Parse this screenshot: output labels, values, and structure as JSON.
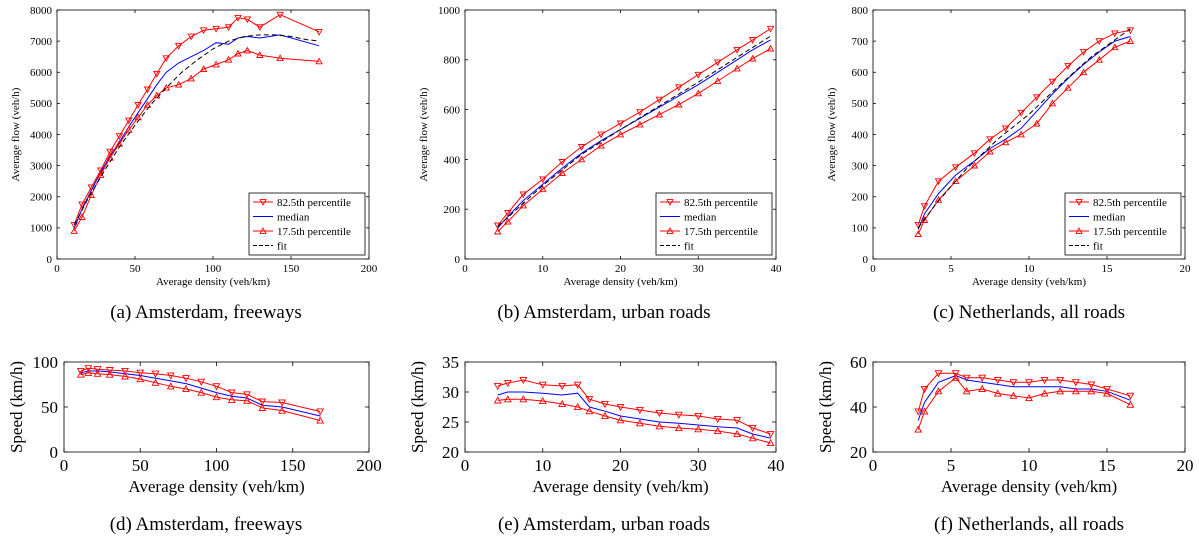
{
  "chart_data": [
    {
      "type": "line",
      "caption": "(a) Amsterdam, freeways",
      "xlabel": "Average density (veh/km)",
      "ylabel": "Average flow (veh/h)",
      "xlim": [
        0,
        200
      ],
      "ylim": [
        0,
        8000
      ],
      "xticks": [
        0,
        50,
        100,
        150,
        200
      ],
      "yticks": [
        0,
        1000,
        2000,
        3000,
        4000,
        5000,
        6000,
        7000,
        8000
      ],
      "legend_position": "bottom-right",
      "series": [
        {
          "name": "82.5th percentile",
          "x": [
            11,
            16,
            22,
            28,
            34,
            40,
            46,
            52,
            58,
            64,
            70,
            78,
            86,
            94,
            102,
            110,
            116,
            122,
            130,
            143,
            168
          ],
          "y": [
            1100,
            1750,
            2300,
            2850,
            3450,
            3950,
            4450,
            4950,
            5450,
            5950,
            6450,
            6850,
            7150,
            7350,
            7400,
            7450,
            7750,
            7700,
            7450,
            7850,
            7300
          ]
        },
        {
          "name": "median",
          "x": [
            11,
            16,
            22,
            28,
            34,
            40,
            46,
            52,
            58,
            64,
            70,
            78,
            86,
            94,
            102,
            110,
            116,
            122,
            130,
            143,
            168
          ],
          "y": [
            1000,
            1600,
            2200,
            2800,
            3300,
            3750,
            4250,
            4700,
            5150,
            5600,
            6000,
            6300,
            6500,
            6700,
            6950,
            6900,
            7100,
            7150,
            7100,
            7200,
            6850
          ]
        },
        {
          "name": "17.5th percentile",
          "x": [
            11,
            16,
            22,
            28,
            34,
            40,
            46,
            52,
            58,
            64,
            70,
            78,
            86,
            94,
            102,
            110,
            116,
            122,
            130,
            143,
            168
          ],
          "y": [
            900,
            1350,
            2050,
            2700,
            3250,
            3700,
            4150,
            4550,
            4950,
            5250,
            5500,
            5600,
            5800,
            6100,
            6250,
            6400,
            6600,
            6700,
            6550,
            6450,
            6350
          ]
        },
        {
          "name": "fit",
          "x": [
            11,
            20,
            30,
            40,
            50,
            60,
            70,
            80,
            90,
            100,
            110,
            120,
            130,
            140,
            150,
            160,
            168
          ],
          "y": [
            1100,
            1950,
            2800,
            3600,
            4300,
            4950,
            5500,
            6000,
            6400,
            6750,
            7000,
            7150,
            7200,
            7200,
            7150,
            7050,
            7000
          ],
          "style": "dashed"
        }
      ]
    },
    {
      "type": "line",
      "caption": "(b) Amsterdam, urban roads",
      "xlabel": "Average density (veh/km)",
      "ylabel": "Average flow (veh/h)",
      "xlim": [
        0,
        40
      ],
      "ylim": [
        0,
        1000
      ],
      "xticks": [
        0,
        10,
        20,
        30,
        40
      ],
      "yticks": [
        0,
        200,
        400,
        600,
        800,
        1000
      ],
      "legend_position": "bottom-right",
      "series": [
        {
          "name": "82.5th percentile",
          "x": [
            4.2,
            5.5,
            7.5,
            10,
            12.5,
            15,
            17.5,
            20,
            22.5,
            25,
            27.5,
            30,
            32.5,
            35,
            37,
            39.3
          ],
          "y": [
            135,
            185,
            260,
            320,
            390,
            450,
            500,
            545,
            590,
            640,
            690,
            740,
            790,
            840,
            880,
            925
          ]
        },
        {
          "name": "median",
          "x": [
            4.2,
            5.5,
            7.5,
            10,
            12.5,
            15,
            17.5,
            20,
            22.5,
            25,
            27.5,
            30,
            32.5,
            35,
            37,
            39.3
          ],
          "y": [
            125,
            170,
            235,
            300,
            365,
            425,
            475,
            520,
            565,
            610,
            655,
            700,
            750,
            800,
            840,
            880
          ]
        },
        {
          "name": "17.5th percentile",
          "x": [
            4.2,
            5.5,
            7.5,
            10,
            12.5,
            15,
            17.5,
            20,
            22.5,
            25,
            27.5,
            30,
            32.5,
            35,
            37,
            39.3
          ],
          "y": [
            110,
            150,
            215,
            280,
            345,
            400,
            455,
            500,
            540,
            580,
            620,
            665,
            715,
            765,
            805,
            845
          ]
        },
        {
          "name": "fit",
          "x": [
            4.2,
            10,
            15,
            20,
            25,
            30,
            35,
            39.3
          ],
          "y": [
            130,
            295,
            420,
            520,
            615,
            710,
            810,
            895
          ],
          "style": "dashed"
        }
      ]
    },
    {
      "type": "line",
      "caption": "(c) Netherlands, all roads",
      "xlabel": "Average density (veh/km)",
      "ylabel": "Average flow (veh/h)",
      "xlim": [
        0,
        20
      ],
      "ylim": [
        0,
        800
      ],
      "xticks": [
        0,
        5,
        10,
        15,
        20
      ],
      "yticks": [
        0,
        100,
        200,
        300,
        400,
        500,
        600,
        700,
        800
      ],
      "legend_position": "bottom-right",
      "series": [
        {
          "name": "82.5th percentile",
          "x": [
            2.9,
            3.3,
            4.2,
            5.3,
            6.5,
            7.5,
            8.5,
            9.5,
            10.5,
            11.5,
            12.5,
            13.5,
            14.5,
            15.5,
            16.5
          ],
          "y": [
            110,
            170,
            250,
            295,
            340,
            385,
            420,
            470,
            520,
            570,
            620,
            665,
            700,
            725,
            735
          ]
        },
        {
          "name": "median",
          "x": [
            2.9,
            3.3,
            4.2,
            5.3,
            6.5,
            7.5,
            8.5,
            9.5,
            10.5,
            11.5,
            12.5,
            13.5,
            14.5,
            15.5,
            16.5
          ],
          "y": [
            95,
            145,
            210,
            270,
            315,
            355,
            385,
            420,
            475,
            530,
            580,
            625,
            665,
            700,
            715
          ]
        },
        {
          "name": "17.5th percentile",
          "x": [
            2.9,
            3.3,
            4.2,
            5.3,
            6.5,
            7.5,
            8.5,
            9.5,
            10.5,
            11.5,
            12.5,
            13.5,
            14.5,
            15.5,
            16.5
          ],
          "y": [
            80,
            125,
            190,
            250,
            300,
            345,
            375,
            400,
            435,
            500,
            550,
            600,
            640,
            680,
            700
          ]
        },
        {
          "name": "fit",
          "x": [
            2.9,
            4,
            6,
            8,
            10,
            12,
            14,
            16.5
          ],
          "y": [
            100,
            175,
            290,
            385,
            465,
            560,
            650,
            740
          ],
          "style": "dashed"
        }
      ]
    },
    {
      "type": "line",
      "caption": "(d) Amsterdam, freeways",
      "xlabel": "Average density (veh/km)",
      "ylabel": "Speed (km/h)",
      "xlim": [
        0,
        200
      ],
      "ylim": [
        0,
        100
      ],
      "xticks": [
        0,
        50,
        100,
        150,
        200
      ],
      "yticks": [
        0,
        50,
        100
      ],
      "series": [
        {
          "name": "82.5th percentile",
          "x": [
            11,
            16,
            22,
            30,
            40,
            50,
            60,
            70,
            80,
            90,
            100,
            110,
            120,
            130,
            143,
            168
          ],
          "y": [
            90,
            93,
            92,
            91,
            90,
            88,
            87,
            85,
            82,
            78,
            73,
            66,
            64,
            56,
            55,
            45
          ]
        },
        {
          "name": "median",
          "x": [
            11,
            16,
            22,
            30,
            40,
            50,
            60,
            70,
            80,
            90,
            100,
            110,
            120,
            130,
            143,
            168
          ],
          "y": [
            88,
            90,
            90,
            89,
            87,
            85,
            82,
            79,
            76,
            71,
            66,
            62,
            60,
            52,
            50,
            40
          ]
        },
        {
          "name": "17.5th percentile",
          "x": [
            11,
            16,
            22,
            30,
            40,
            50,
            60,
            70,
            80,
            90,
            100,
            110,
            120,
            130,
            143,
            168
          ],
          "y": [
            86,
            88,
            87,
            86,
            84,
            81,
            77,
            73,
            70,
            66,
            61,
            58,
            57,
            49,
            46,
            35
          ]
        }
      ]
    },
    {
      "type": "line",
      "caption": "(e) Amsterdam, urban roads",
      "xlabel": "Average density (veh/km)",
      "ylabel": "Speed (km/h)",
      "xlim": [
        0,
        40
      ],
      "ylim": [
        20,
        35
      ],
      "xticks": [
        0,
        10,
        20,
        30,
        40
      ],
      "yticks": [
        20,
        25,
        30,
        35
      ],
      "series": [
        {
          "name": "82.5th percentile",
          "x": [
            4.2,
            5.5,
            7.5,
            10,
            12.5,
            14.5,
            16,
            18,
            20,
            22.5,
            25,
            27.5,
            30,
            32.5,
            35,
            37,
            39.3
          ],
          "y": [
            31.0,
            31.5,
            32.0,
            31.2,
            31.0,
            31.2,
            28.8,
            28.0,
            27.5,
            27.0,
            26.5,
            26.2,
            26.0,
            25.5,
            25.3,
            24.0,
            23.0
          ]
        },
        {
          "name": "median",
          "x": [
            4.2,
            5.5,
            7.5,
            10,
            12.5,
            14.5,
            16,
            18,
            20,
            22.5,
            25,
            27.5,
            30,
            32.5,
            35,
            37,
            39.3
          ],
          "y": [
            29.5,
            30.0,
            30.0,
            29.8,
            29.5,
            29.8,
            27.5,
            26.8,
            26.0,
            25.5,
            25.0,
            24.8,
            24.5,
            24.2,
            24.0,
            23.0,
            22.3
          ]
        },
        {
          "name": "17.5th percentile",
          "x": [
            4.2,
            5.5,
            7.5,
            10,
            12.5,
            14.5,
            16,
            18,
            20,
            22.5,
            25,
            27.5,
            30,
            32.5,
            35,
            37,
            39.3
          ],
          "y": [
            28.6,
            28.8,
            28.8,
            28.5,
            28.0,
            27.5,
            26.8,
            26.0,
            25.3,
            24.8,
            24.3,
            24.0,
            23.8,
            23.5,
            23.0,
            22.3,
            21.5
          ]
        }
      ]
    },
    {
      "type": "line",
      "caption": "(f) Netherlands, all roads",
      "xlabel": "Average density (veh/km)",
      "ylabel": "Speed (km/h)",
      "xlim": [
        0,
        20
      ],
      "ylim": [
        20,
        60
      ],
      "xticks": [
        0,
        5,
        10,
        15,
        20
      ],
      "yticks": [
        20,
        40,
        60
      ],
      "series": [
        {
          "name": "82.5th percentile",
          "x": [
            2.9,
            3.3,
            4.2,
            5.3,
            6,
            7,
            8,
            9,
            10,
            11,
            12,
            13,
            14,
            15,
            16.5
          ],
          "y": [
            38,
            48,
            55,
            55,
            53,
            53,
            52,
            51,
            51,
            52,
            52,
            51,
            50,
            48,
            45
          ]
        },
        {
          "name": "median",
          "x": [
            2.9,
            3.3,
            4.2,
            5.3,
            6,
            7,
            8,
            9,
            10,
            11,
            12,
            13,
            14,
            15,
            16.5
          ],
          "y": [
            34,
            42,
            51,
            54,
            52,
            51,
            50,
            49,
            49,
            49,
            49,
            48,
            48,
            47,
            43
          ]
        },
        {
          "name": "17.5th percentile",
          "x": [
            2.9,
            3.3,
            4.2,
            5.3,
            6,
            7,
            8,
            9,
            10,
            11,
            12,
            13,
            14,
            15,
            16.5
          ],
          "y": [
            30,
            38,
            47,
            53,
            47,
            48,
            46,
            45,
            44,
            46,
            47,
            47,
            47,
            46,
            41
          ]
        }
      ]
    }
  ]
}
